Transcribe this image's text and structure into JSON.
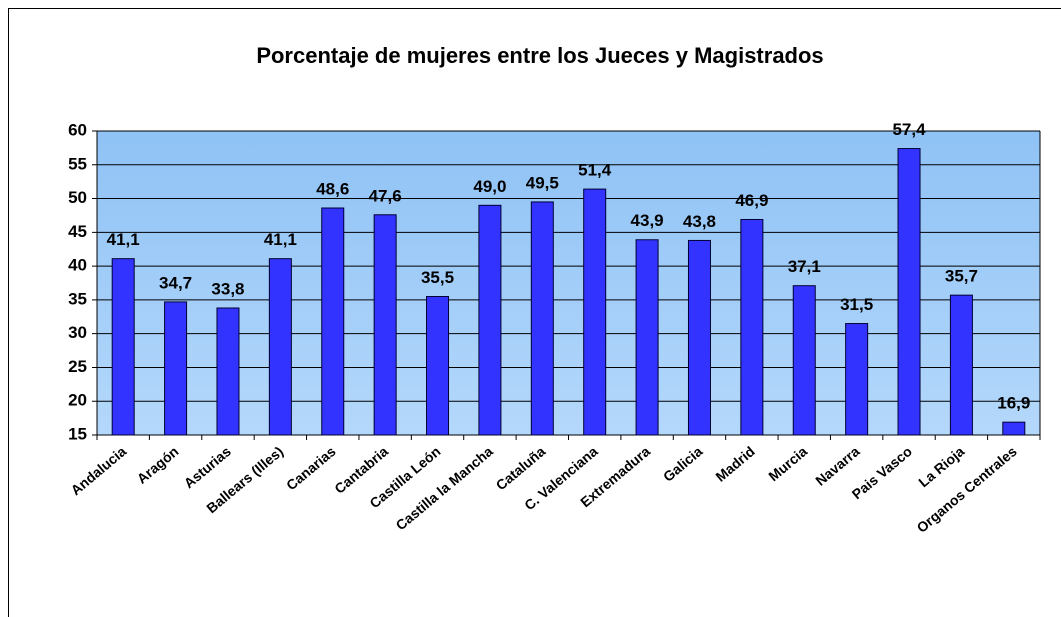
{
  "chart_data": {
    "type": "bar",
    "title": "Porcentaje de mujeres entre los Jueces y Magistrados",
    "categories": [
      "Andalucia",
      "Aragón",
      "Asturias",
      "Ballears (Illes)",
      "Canarias",
      "Cantabria",
      "Castilla León",
      "Castilla la Mancha",
      "Cataluña",
      "C. Valenciana",
      "Extremadura",
      "Galicia",
      "Madrid",
      "Murcia",
      "Navarra",
      "Pais Vasco",
      "La Rioja",
      "Organos Centrales"
    ],
    "values": [
      41.1,
      34.7,
      33.8,
      41.1,
      48.6,
      47.6,
      35.5,
      49.0,
      49.5,
      51.4,
      43.9,
      43.8,
      46.9,
      37.1,
      31.5,
      57.4,
      35.7,
      16.9
    ],
    "value_labels": [
      "41,1",
      "34,7",
      "33,8",
      "41,1",
      "48,6",
      "47,6",
      "35,5",
      "49,0",
      "49,5",
      "51,4",
      "43,9",
      "43,8",
      "46,9",
      "37,1",
      "31,5",
      "57,4",
      "35,7",
      "16,9"
    ],
    "color": "#3333ff",
    "ylim": [
      15,
      60
    ],
    "yticks": [
      15,
      20,
      25,
      30,
      35,
      40,
      45,
      50,
      55,
      60
    ],
    "grid": true
  }
}
